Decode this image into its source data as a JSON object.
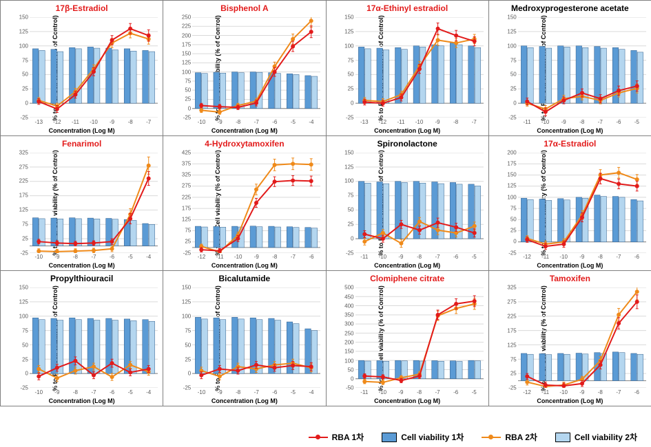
{
  "colors": {
    "rba1": "#e21b1b",
    "rba2": "#ef8a1a",
    "cv1": "#5b9bd5",
    "cv2": "#b4d6ef",
    "grid": "#d9d9d9",
    "axis": "#7f7f7f",
    "title_red": "#e21b1b",
    "title_black": "#000000"
  },
  "ylabel": "% to PC/\nCell viability (% of Control)",
  "xlabel": "Concentration (Log M)",
  "legend": {
    "rba1": "RBA 1차",
    "rba2": "RBA 2차",
    "cv1": "Cell viability 1차",
    "cv2": "Cell viability 2차"
  },
  "panels": [
    {
      "title": "17β-Estradiol",
      "title_color": "red",
      "x": [
        -13,
        -12,
        -11,
        -10,
        -9,
        -8,
        -7
      ],
      "ylim": [
        -25,
        150
      ],
      "ytick_step": 25,
      "cv1": [
        95,
        94,
        97,
        98,
        96,
        95,
        92
      ],
      "cv2": [
        92,
        90,
        95,
        96,
        93,
        91,
        90
      ],
      "rba1": [
        3,
        -10,
        15,
        55,
        110,
        130,
        118
      ],
      "rba2": [
        5,
        -5,
        20,
        60,
        105,
        122,
        112
      ],
      "rba1_err": [
        5,
        6,
        6,
        7,
        8,
        9,
        10
      ],
      "rba2_err": [
        5,
        5,
        6,
        7,
        8,
        8,
        9
      ]
    },
    {
      "title": "Bisphenol A",
      "title_color": "red",
      "x": [
        -10,
        -9,
        -8,
        -7,
        -6,
        -5,
        -4
      ],
      "ylim": [
        -25,
        250
      ],
      "ytick_step": 25,
      "cv1": [
        98,
        99,
        100,
        100,
        98,
        95,
        90
      ],
      "cv2": [
        96,
        97,
        98,
        99,
        96,
        93,
        88
      ],
      "rba1": [
        8,
        5,
        3,
        15,
        100,
        170,
        210
      ],
      "rba2": [
        -5,
        -10,
        8,
        20,
        115,
        190,
        240
      ],
      "rba1_err": [
        6,
        6,
        6,
        8,
        12,
        14,
        16
      ],
      "rba2_err": [
        6,
        6,
        6,
        8,
        12,
        14,
        18
      ]
    },
    {
      "title": "17α-Ethinyl estradiol",
      "title_color": "red",
      "x": [
        -13,
        -12,
        -11,
        -10,
        -9,
        -8,
        -7
      ],
      "ylim": [
        -25,
        150
      ],
      "ytick_step": 25,
      "cv1": [
        98,
        96,
        97,
        100,
        102,
        105,
        100
      ],
      "cv2": [
        95,
        93,
        94,
        98,
        100,
        102,
        97
      ],
      "rba1": [
        2,
        0,
        10,
        60,
        130,
        118,
        108
      ],
      "rba2": [
        5,
        3,
        15,
        65,
        110,
        105,
        112
      ],
      "rba1_err": [
        5,
        5,
        6,
        8,
        10,
        9,
        8
      ],
      "rba2_err": [
        5,
        5,
        6,
        8,
        9,
        8,
        8
      ]
    },
    {
      "title": "Medroxyprogesterone acetate",
      "title_color": "black",
      "x": [
        -11,
        -10,
        -9,
        -8,
        -7,
        -6,
        -5
      ],
      "ylim": [
        -25,
        150
      ],
      "ytick_step": 25,
      "cv1": [
        100,
        99,
        100,
        100,
        99,
        97,
        92
      ],
      "cv2": [
        97,
        96,
        98,
        97,
        96,
        94,
        89
      ],
      "rba1": [
        3,
        -15,
        5,
        18,
        8,
        22,
        30
      ],
      "rba2": [
        0,
        -10,
        8,
        12,
        5,
        18,
        26
      ],
      "rba1_err": [
        6,
        7,
        6,
        7,
        7,
        8,
        9
      ],
      "rba2_err": [
        5,
        6,
        6,
        6,
        6,
        7,
        8
      ]
    },
    {
      "title": "Fenarimol",
      "title_color": "red",
      "x": [
        -10,
        -9,
        -8,
        -7,
        -6,
        -5,
        -4
      ],
      "ylim": [
        -25,
        325
      ],
      "ytick_step": 50,
      "cv1": [
        98,
        97,
        98,
        97,
        96,
        92,
        78
      ],
      "cv2": [
        95,
        94,
        95,
        94,
        93,
        89,
        75
      ],
      "rba1": [
        15,
        10,
        8,
        10,
        15,
        95,
        235
      ],
      "rba2": [
        -18,
        -20,
        -18,
        -16,
        -10,
        110,
        280
      ],
      "rba1_err": [
        8,
        8,
        8,
        8,
        10,
        18,
        24
      ],
      "rba2_err": [
        8,
        8,
        8,
        8,
        10,
        20,
        30
      ]
    },
    {
      "title": "4-Hydroxytamoxifen",
      "title_color": "red",
      "x": [
        -12,
        -11,
        -10,
        -9,
        -8,
        -7,
        -6
      ],
      "ylim": [
        -25,
        425
      ],
      "ytick_step": 50,
      "cv1": [
        95,
        94,
        95,
        96,
        95,
        93,
        90
      ],
      "cv2": [
        92,
        91,
        92,
        93,
        92,
        90,
        87
      ],
      "rba1": [
        -10,
        -15,
        40,
        200,
        295,
        300,
        298
      ],
      "rba2": [
        5,
        -20,
        55,
        260,
        370,
        375,
        372
      ],
      "rba1_err": [
        10,
        10,
        14,
        20,
        22,
        22,
        22
      ],
      "rba2_err": [
        10,
        10,
        14,
        24,
        26,
        26,
        26
      ]
    },
    {
      "title": "Spironolactone",
      "title_color": "black",
      "x": [
        -11,
        -10,
        -9,
        -8,
        -7,
        -6,
        -5
      ],
      "ylim": [
        -25,
        150
      ],
      "ytick_step": 25,
      "cv1": [
        100,
        99,
        100,
        100,
        99,
        98,
        95
      ],
      "cv2": [
        97,
        96,
        98,
        97,
        96,
        95,
        92
      ],
      "rba1": [
        8,
        0,
        25,
        15,
        28,
        20,
        10
      ],
      "rba2": [
        -5,
        10,
        -8,
        30,
        15,
        10,
        22
      ],
      "rba1_err": [
        6,
        6,
        7,
        7,
        8,
        7,
        7
      ],
      "rba2_err": [
        6,
        6,
        7,
        7,
        8,
        7,
        7
      ]
    },
    {
      "title": "17α-Estradiol",
      "title_color": "red",
      "x": [
        -12,
        -11,
        -10,
        -9,
        -8,
        -7,
        -6
      ],
      "ylim": [
        -25,
        200
      ],
      "ytick_step": 25,
      "cv1": [
        98,
        96,
        97,
        100,
        105,
        102,
        95
      ],
      "cv2": [
        95,
        93,
        94,
        98,
        102,
        100,
        92
      ],
      "rba1": [
        5,
        -10,
        -5,
        55,
        142,
        130,
        125
      ],
      "rba2": [
        8,
        -5,
        0,
        60,
        150,
        155,
        140
      ],
      "rba1_err": [
        6,
        7,
        7,
        10,
        12,
        11,
        11
      ],
      "rba2_err": [
        6,
        7,
        7,
        10,
        12,
        12,
        11
      ]
    },
    {
      "title": "Propylthiouracil",
      "title_color": "black",
      "x": [
        -10,
        -9,
        -8,
        -7,
        -6,
        -5,
        -4
      ],
      "ylim": [
        -25,
        150
      ],
      "ytick_step": 25,
      "cv1": [
        97,
        96,
        97,
        96,
        96,
        95,
        94
      ],
      "cv2": [
        94,
        93,
        94,
        93,
        93,
        92,
        91
      ],
      "rba1": [
        -5,
        10,
        22,
        -3,
        18,
        2,
        8
      ],
      "rba2": [
        8,
        -8,
        5,
        12,
        -6,
        15,
        3
      ],
      "rba1_err": [
        6,
        6,
        7,
        6,
        7,
        6,
        6
      ],
      "rba2_err": [
        6,
        6,
        6,
        6,
        6,
        6,
        6
      ]
    },
    {
      "title": "Bicalutamide",
      "title_color": "black",
      "x": [
        -10,
        -9,
        -8,
        -7,
        -6,
        -5,
        -4
      ],
      "ylim": [
        -25,
        150
      ],
      "ytick_step": 25,
      "cv1": [
        98,
        97,
        98,
        97,
        96,
        90,
        78
      ],
      "cv2": [
        95,
        94,
        95,
        94,
        93,
        87,
        75
      ],
      "rba1": [
        -3,
        8,
        5,
        15,
        10,
        14,
        12
      ],
      "rba2": [
        5,
        -5,
        12,
        8,
        15,
        18,
        10
      ],
      "rba1_err": [
        6,
        6,
        6,
        6,
        6,
        7,
        7
      ],
      "rba2_err": [
        6,
        6,
        6,
        6,
        6,
        7,
        7
      ]
    },
    {
      "title": "Clomiphene citrate",
      "title_color": "red",
      "x": [
        -11,
        -10,
        -9,
        -8,
        -7,
        -6,
        -5
      ],
      "ylim": [
        -50,
        500
      ],
      "ytick_step": 50,
      "cv1": [
        100,
        99,
        100,
        100,
        99,
        98,
        100
      ],
      "cv2": [
        97,
        96,
        98,
        97,
        96,
        95,
        98
      ],
      "rba1": [
        15,
        10,
        -10,
        15,
        350,
        410,
        425
      ],
      "rba2": [
        -15,
        -20,
        5,
        25,
        345,
        385,
        410
      ],
      "rba1_err": [
        12,
        12,
        12,
        14,
        26,
        28,
        30
      ],
      "rba2_err": [
        12,
        12,
        12,
        14,
        26,
        28,
        30
      ]
    },
    {
      "title": "Tamoxifen",
      "title_color": "red",
      "x": [
        -12,
        -11,
        -10,
        -9,
        -8,
        -7,
        -6
      ],
      "ylim": [
        -25,
        325
      ],
      "ytick_step": 50,
      "cv1": [
        95,
        94,
        95,
        96,
        98,
        100,
        95
      ],
      "cv2": [
        92,
        91,
        92,
        93,
        95,
        98,
        92
      ],
      "rba1": [
        15,
        -15,
        -18,
        -10,
        55,
        200,
        275
      ],
      "rba2": [
        -5,
        -20,
        -15,
        5,
        70,
        230,
        310
      ],
      "rba1_err": [
        10,
        10,
        10,
        10,
        14,
        20,
        24
      ],
      "rba2_err": [
        10,
        10,
        10,
        10,
        14,
        22,
        28
      ]
    }
  ]
}
